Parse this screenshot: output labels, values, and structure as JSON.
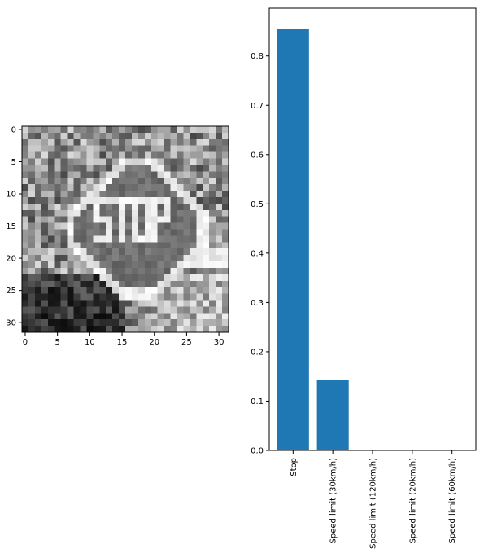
{
  "chart_data": [
    {
      "type": "heatmap",
      "title": "",
      "xlabel": "",
      "ylabel": "",
      "xlim": [
        -0.5,
        31.5
      ],
      "ylim": [
        31.5,
        -0.5
      ],
      "xticks": [
        0,
        5,
        10,
        15,
        20,
        25,
        30
      ],
      "yticks": [
        0,
        5,
        10,
        15,
        20,
        25,
        30
      ],
      "colormap": "gray",
      "content": "grayscale traffic sign image",
      "sign_text": "STOP"
    },
    {
      "type": "bar",
      "title": "",
      "xlabel": "",
      "ylabel": "",
      "categories": [
        "Stop",
        "Speed limit (30km/h)",
        "Speed limit (120km/h)",
        "Speed limit (20km/h)",
        "Speed limit (60km/h)"
      ],
      "values": [
        0.855,
        0.143,
        0.001,
        0.0005,
        0.0003
      ],
      "ylim": [
        0,
        0.897
      ],
      "yticks": [
        0.0,
        0.1,
        0.2,
        0.3,
        0.4,
        0.5,
        0.6,
        0.7,
        0.8
      ],
      "bar_color": "#1f77b4",
      "grid": false,
      "legend": "none"
    }
  ]
}
